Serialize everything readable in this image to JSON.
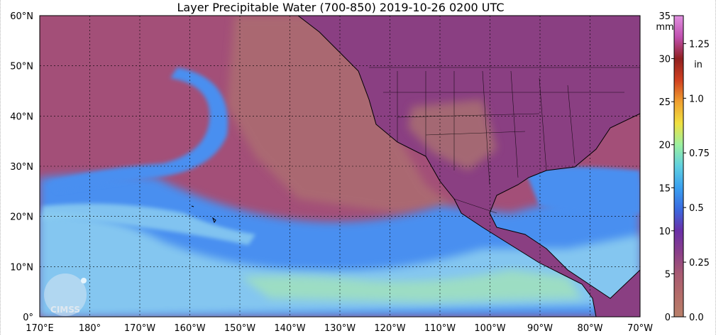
{
  "title": "Layer Precipitable Water (700-850)  2019-10-26 0200 UTC",
  "map": {
    "lat_labels": [
      {
        "text": "60°N",
        "lat": 60
      },
      {
        "text": "50°N",
        "lat": 50
      },
      {
        "text": "40°N",
        "lat": 40
      },
      {
        "text": "30°N",
        "lat": 30
      },
      {
        "text": "20°N",
        "lat": 20
      },
      {
        "text": "10°N",
        "lat": 10
      },
      {
        "text": "0°",
        "lat": 0
      }
    ],
    "lon_labels": [
      {
        "text": "170°E",
        "lon": 170
      },
      {
        "text": "180°",
        "lon": 180
      },
      {
        "text": "170°W",
        "lon": 190
      },
      {
        "text": "160°W",
        "lon": 200
      },
      {
        "text": "150°W",
        "lon": 210
      },
      {
        "text": "140°W",
        "lon": 220
      },
      {
        "text": "130°W",
        "lon": 230
      },
      {
        "text": "120°W",
        "lon": 240
      },
      {
        "text": "110°W",
        "lon": 250
      },
      {
        "text": "100°W",
        "lon": 260
      },
      {
        "text": "90°W",
        "lon": 270
      },
      {
        "text": "80°W",
        "lon": 280
      },
      {
        "text": "70°W",
        "lon": 290
      }
    ],
    "logo_text": "CIMSS"
  },
  "colorbar": {
    "mm_unit": "mm",
    "in_unit": "in",
    "mm_max": 35,
    "mm_ticks": [
      {
        "text": "35",
        "value": 35
      },
      {
        "text": "30",
        "value": 30
      },
      {
        "text": "25",
        "value": 25
      },
      {
        "text": "20",
        "value": 20
      },
      {
        "text": "15",
        "value": 15
      },
      {
        "text": "10",
        "value": 10
      },
      {
        "text": "5",
        "value": 5
      },
      {
        "text": "0",
        "value": 0
      }
    ],
    "in_ticks": [
      {
        "text": "1.25",
        "value": 1.25
      },
      {
        "text": "1.0",
        "value": 1.0
      },
      {
        "text": "0.75",
        "value": 0.75
      },
      {
        "text": "0.5",
        "value": 0.5
      },
      {
        "text": "0.25",
        "value": 0.25
      },
      {
        "text": "0.0",
        "value": 0.0
      }
    ],
    "stops": [
      "#b9806a",
      "#b46d6a",
      "#a85a72",
      "#8a3f8a",
      "#6a2fa8",
      "#3a6ae0",
      "#3aa0f0",
      "#60d0e0",
      "#9cf0a0",
      "#f0e040",
      "#f0a030",
      "#d04020",
      "#902020",
      "#c050b0",
      "#e090e0"
    ]
  },
  "colors": {
    "ocean_dry": "#a34f78",
    "land_dry": "#8a3f82",
    "desert": "#b07a6e",
    "moist_blue": "#4a8ff0",
    "moist_light": "#8fd0f0",
    "moist_green": "#b0f0a0",
    "coast": "#000000",
    "grid": "#000000"
  }
}
